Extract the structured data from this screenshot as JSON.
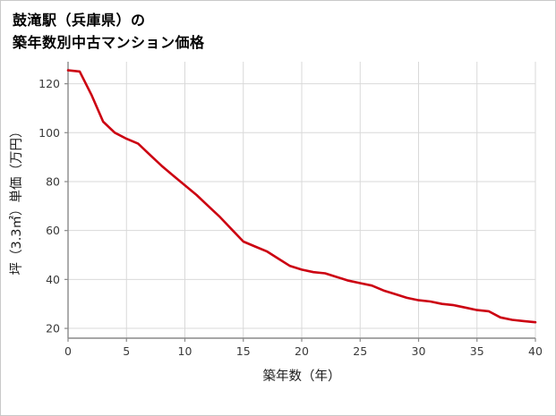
{
  "chart_data": {
    "type": "line",
    "title": "鼓滝駅（兵庫県）の築年数別中古マンション価格",
    "title_line1": "鼓滝駅（兵庫県）の",
    "title_line2": "築年数別中古マンション価格",
    "xlabel": "築年数（年）",
    "ylabel": "坪（3.3㎡）単価（万円）",
    "x": [
      0,
      1,
      2,
      3,
      4,
      5,
      6,
      7,
      8,
      9,
      10,
      11,
      12,
      13,
      14,
      15,
      16,
      17,
      18,
      19,
      20,
      21,
      22,
      23,
      24,
      25,
      26,
      27,
      28,
      29,
      30,
      31,
      32,
      33,
      34,
      35,
      36,
      37,
      38,
      39,
      40
    ],
    "y": [
      125.5,
      125,
      115.5,
      104.5,
      100,
      97.5,
      95.5,
      91,
      86.5,
      82.5,
      78.5,
      74.5,
      70,
      65.5,
      60.5,
      55.5,
      53.5,
      51.5,
      48.5,
      45.5,
      44,
      43,
      42.5,
      41,
      39.5,
      38.5,
      37.5,
      35.5,
      34,
      32.5,
      31.5,
      31,
      30,
      29.5,
      28.5,
      27.5,
      27,
      24.5,
      23.5,
      23,
      22.5
    ],
    "xlim": [
      0,
      40
    ],
    "ylim": [
      16,
      129
    ],
    "xticks": [
      0,
      5,
      10,
      15,
      20,
      25,
      30,
      35,
      40
    ],
    "yticks": [
      20,
      40,
      60,
      80,
      100,
      120
    ],
    "grid": true,
    "legend": "none",
    "colors": {
      "line": "#cc0011",
      "grid": "#d9d9d9",
      "axis": "#8a8a8a",
      "tick_label": "#3a3a3a",
      "axis_label": "#1a1a1a",
      "background": "#ffffff"
    }
  }
}
